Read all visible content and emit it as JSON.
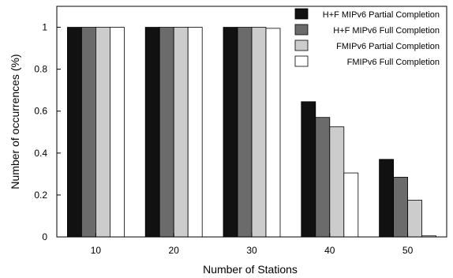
{
  "chart_data": {
    "type": "bar",
    "title": "",
    "xlabel": "Number of Stations",
    "ylabel": "Number of occurrences (%)",
    "categories": [
      "10",
      "20",
      "30",
      "40",
      "50"
    ],
    "ylim": [
      0,
      1.1
    ],
    "yticks": [
      "0",
      "0.2",
      "0.4",
      "0.6",
      "0.8",
      "1"
    ],
    "grid": false,
    "legend_position": "top-right",
    "series": [
      {
        "name": "H+F MIPv6 Partial Completion",
        "color": "#111111",
        "values": [
          1.0,
          1.0,
          1.0,
          0.645,
          0.37
        ]
      },
      {
        "name": "H+F MIPv6 Full Completion",
        "color": "#6b6b6b",
        "values": [
          1.0,
          1.0,
          1.0,
          0.57,
          0.285
        ]
      },
      {
        "name": "FMIPv6 Partial Completion",
        "color": "#cccccc",
        "values": [
          1.0,
          1.0,
          1.0,
          0.525,
          0.175
        ]
      },
      {
        "name": "FMIPv6 Full Completion",
        "color": "#ffffff",
        "values": [
          1.0,
          1.0,
          0.995,
          0.305,
          0.005
        ]
      }
    ]
  }
}
